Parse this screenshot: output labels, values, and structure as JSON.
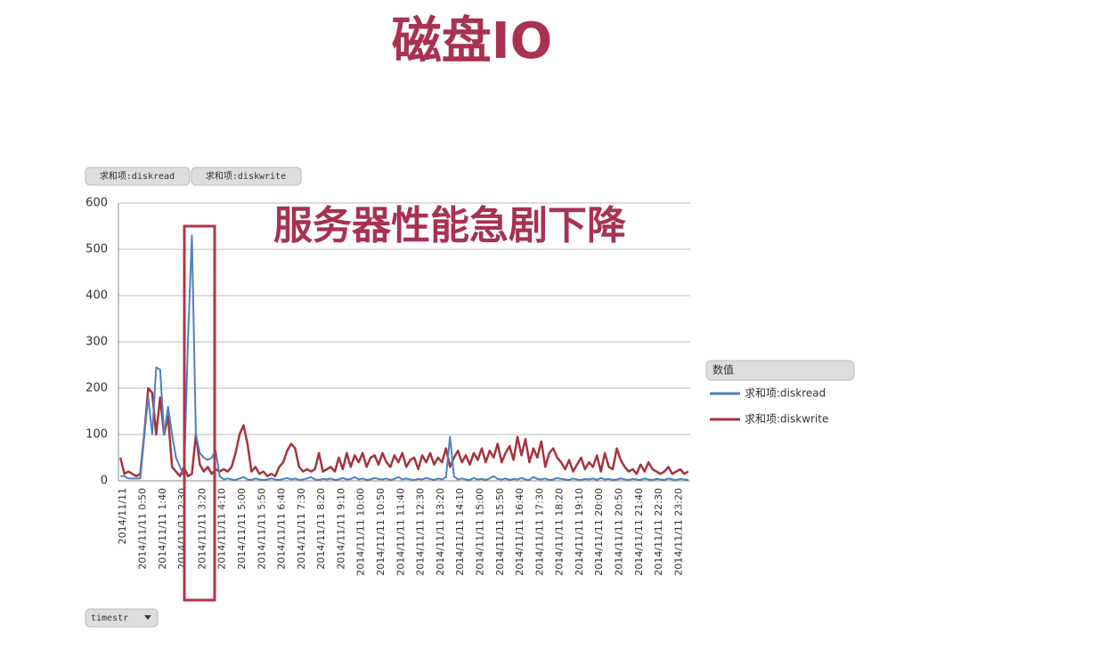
{
  "chart_data": {
    "type": "line",
    "title": "磁盘IO",
    "annotation": "服务器性能急剧下降",
    "field_buttons": [
      "求和项:diskread",
      "求和项:diskwrite"
    ],
    "legend_title": "数值",
    "x_field": "timestr",
    "categories": [
      "2014/11/11",
      null,
      null,
      null,
      null,
      "2014/11/11 0:50",
      null,
      null,
      null,
      null,
      "2014/11/11 1:40",
      null,
      null,
      null,
      null,
      "2014/11/11 2:30",
      null,
      null,
      null,
      null,
      "2014/11/11 3:20",
      null,
      null,
      null,
      null,
      "2014/11/11 4:10",
      null,
      null,
      null,
      null,
      "2014/11/11 5:00",
      null,
      null,
      null,
      null,
      "2014/11/11 5:50",
      null,
      null,
      null,
      null,
      "2014/11/11 6:40",
      null,
      null,
      null,
      null,
      "2014/11/11 7:30",
      null,
      null,
      null,
      null,
      "2014/11/11 8:20",
      null,
      null,
      null,
      null,
      "2014/11/11 9:10",
      null,
      null,
      null,
      null,
      "2014/11/11 10:00",
      null,
      null,
      null,
      null,
      "2014/11/11 10:50",
      null,
      null,
      null,
      null,
      "2014/11/11 11:40",
      null,
      null,
      null,
      null,
      "2014/11/11 12:30",
      null,
      null,
      null,
      null,
      "2014/11/11 13:20",
      null,
      null,
      null,
      null,
      "2014/11/11 14:10",
      null,
      null,
      null,
      null,
      "2014/11/11 15:00",
      null,
      null,
      null,
      null,
      "2014/11/11 15:50",
      null,
      null,
      null,
      null,
      "2014/11/11 16:40",
      null,
      null,
      null,
      null,
      "2014/11/11 17:30",
      null,
      null,
      null,
      null,
      "2014/11/11 18:20",
      null,
      null,
      null,
      null,
      "2014/11/11 19:10",
      null,
      null,
      null,
      null,
      "2014/11/11 20:00",
      null,
      null,
      null,
      null,
      "2014/11/11 20:50",
      null,
      null,
      null,
      null,
      "2014/11/11 21:40",
      null,
      null,
      null,
      null,
      "2014/11/11 22:30",
      null,
      null,
      null,
      null,
      "2014/11/11 23:20",
      null,
      null,
      null
    ],
    "series": [
      {
        "name": "求和项:diskread",
        "color": "#4f81bd",
        "values": [
          10,
          10,
          5,
          5,
          5,
          5,
          100,
          180,
          100,
          245,
          240,
          100,
          160,
          100,
          50,
          30,
          10,
          300,
          530,
          100,
          60,
          50,
          45,
          50,
          65,
          10,
          3,
          5,
          3,
          2,
          5,
          8,
          3,
          2,
          5,
          3,
          2,
          3,
          5,
          3,
          2,
          4,
          6,
          3,
          5,
          2,
          3,
          5,
          8,
          3,
          2,
          4,
          3,
          5,
          2,
          3,
          6,
          3,
          4,
          8,
          3,
          5,
          2,
          3,
          6,
          4,
          3,
          5,
          2,
          4,
          8,
          3,
          5,
          3,
          2,
          4,
          3,
          6,
          4,
          2,
          5,
          3,
          8,
          95,
          10,
          3,
          5,
          3,
          2,
          6,
          3,
          4,
          2,
          5,
          10,
          4,
          3,
          5,
          2,
          4,
          3,
          6,
          3,
          2,
          8,
          4,
          3,
          5,
          2,
          3,
          6,
          4,
          3,
          2,
          5,
          3,
          2,
          4,
          3,
          5,
          2,
          6,
          3,
          4,
          2,
          3,
          5,
          3,
          2,
          4,
          3,
          2,
          5,
          3,
          2,
          4,
          3,
          2,
          5,
          3,
          2,
          4,
          3,
          2
        ]
      },
      {
        "name": "求和项:diskwrite",
        "color": "#a5343f",
        "values": [
          50,
          15,
          20,
          15,
          10,
          15,
          100,
          200,
          190,
          100,
          180,
          100,
          140,
          30,
          20,
          10,
          30,
          10,
          15,
          100,
          35,
          20,
          30,
          15,
          25,
          20,
          25,
          20,
          30,
          60,
          100,
          120,
          80,
          20,
          30,
          15,
          20,
          10,
          15,
          10,
          30,
          40,
          65,
          80,
          70,
          30,
          20,
          25,
          20,
          25,
          60,
          20,
          25,
          30,
          20,
          50,
          25,
          60,
          30,
          55,
          40,
          60,
          30,
          50,
          55,
          35,
          60,
          40,
          30,
          55,
          40,
          60,
          30,
          45,
          50,
          25,
          55,
          40,
          60,
          35,
          50,
          40,
          70,
          30,
          50,
          65,
          40,
          55,
          35,
          60,
          45,
          70,
          40,
          65,
          50,
          80,
          40,
          60,
          75,
          45,
          95,
          55,
          90,
          40,
          70,
          50,
          85,
          30,
          60,
          70,
          50,
          40,
          25,
          45,
          20,
          35,
          50,
          25,
          40,
          30,
          55,
          20,
          60,
          30,
          25,
          70,
          45,
          30,
          20,
          25,
          15,
          35,
          20,
          40,
          25,
          20,
          15,
          20,
          30,
          15,
          20,
          25,
          15,
          20
        ]
      }
    ],
    "ylim": [
      0,
      600
    ],
    "yticks": [
      0,
      100,
      200,
      300,
      400,
      500,
      600
    ],
    "grid": true
  }
}
